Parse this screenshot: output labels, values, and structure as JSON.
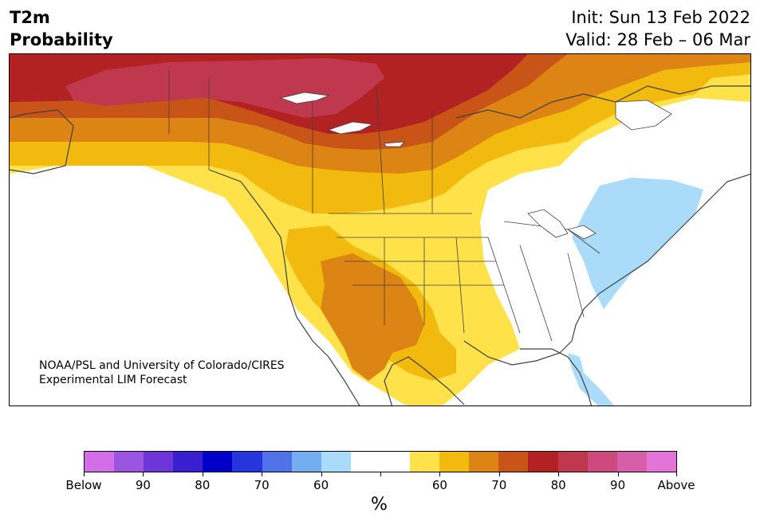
{
  "header": {
    "title_line1": "T2m",
    "title_line2": "Probability",
    "init": "Init: Sun 13 Feb 2022",
    "valid": "Valid: 28 Feb – 06 Mar"
  },
  "map": {
    "region": "North America",
    "credit_line1": "NOAA/PSL and University of Colorado/CIRES",
    "credit_line2": "Experimental LIM Forecast"
  },
  "colorbar": {
    "colors": [
      "#d36ee8",
      "#9b55e0",
      "#6e35d8",
      "#3a1fd0",
      "#0000c8",
      "#2636dc",
      "#4f72e8",
      "#74aef0",
      "#aadcfa",
      "#ffffff",
      "#ffffff",
      "#ffe24a",
      "#f2b90e",
      "#dc8414",
      "#c85418",
      "#b22222",
      "#c0384e",
      "#cd4a7e",
      "#d75ea8",
      "#e474d8"
    ],
    "tick_labels": [
      "Below",
      "90",
      "80",
      "70",
      "60",
      "",
      "60",
      "70",
      "80",
      "90",
      "Above"
    ],
    "unit_label": "%"
  }
}
